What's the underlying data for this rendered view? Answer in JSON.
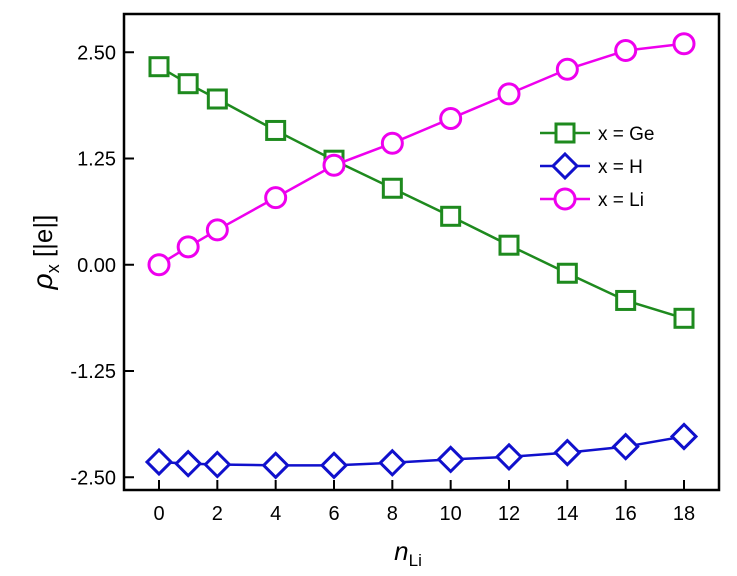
{
  "chart_data": {
    "type": "line",
    "x": [
      0,
      1,
      2,
      4,
      6,
      8,
      10,
      12,
      14,
      16,
      18
    ],
    "xlim": [
      -1.2,
      19.2
    ],
    "ylim": [
      -2.65,
      2.95
    ],
    "xticks": [
      0,
      2,
      4,
      6,
      8,
      10,
      12,
      14,
      16,
      18
    ],
    "xtick_labels": [
      "0",
      "2",
      "4",
      "6",
      "8",
      "10",
      "12",
      "14",
      "16",
      "18"
    ],
    "yticks": [
      -2.5,
      -1.25,
      0.0,
      1.25,
      2.5
    ],
    "ytick_labels": [
      "-2.50",
      "-1.25",
      "0.00",
      "1.25",
      "2.50"
    ],
    "xlabel": {
      "main": "n",
      "sub": "Li"
    },
    "ylabel": {
      "main": "ρ",
      "sub": "x",
      "unit": " [|e|]"
    },
    "grid": false,
    "legend_position": "top-right",
    "series": [
      {
        "name": "x = Ge",
        "marker": "square",
        "color": "#1e8a1e",
        "values": [
          2.33,
          2.13,
          1.95,
          1.58,
          1.23,
          0.9,
          0.57,
          0.23,
          -0.1,
          -0.42,
          -0.63
        ]
      },
      {
        "name": "x = H",
        "marker": "diamond",
        "color": "#1010cc",
        "values": [
          -2.32,
          -2.34,
          -2.35,
          -2.36,
          -2.36,
          -2.33,
          -2.29,
          -2.26,
          -2.21,
          -2.14,
          -2.02
        ]
      },
      {
        "name": "x = Li",
        "marker": "circle",
        "color": "#ee00ee",
        "values": [
          0.0,
          0.21,
          0.41,
          0.79,
          1.17,
          1.43,
          1.72,
          2.01,
          2.3,
          2.52,
          2.6
        ]
      }
    ]
  }
}
